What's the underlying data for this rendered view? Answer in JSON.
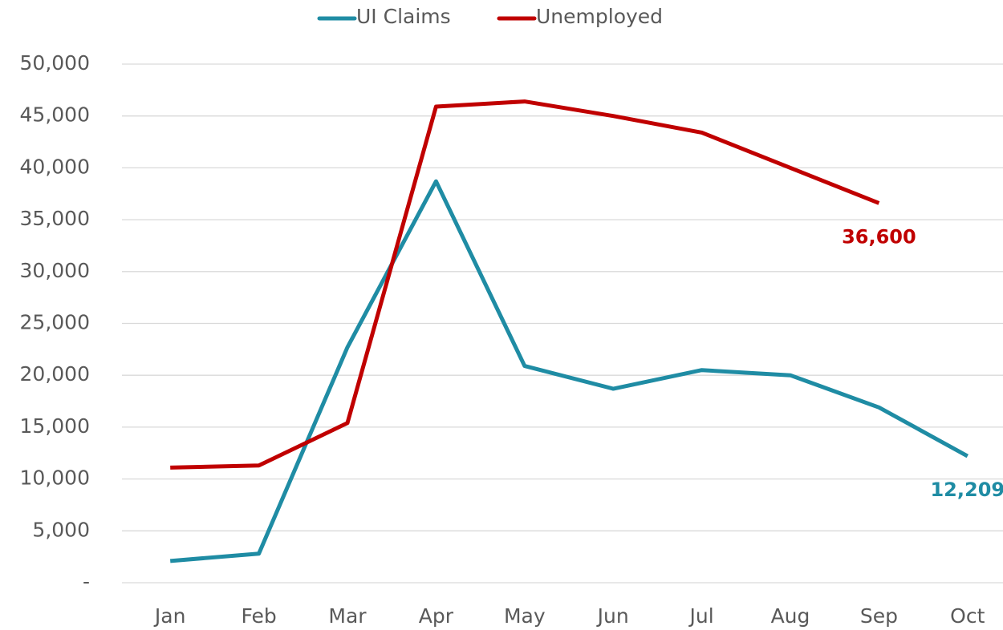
{
  "chart_data": {
    "type": "line",
    "categories": [
      "Jan",
      "Feb",
      "Mar",
      "Apr",
      "May",
      "Jun",
      "Jul",
      "Aug",
      "Sep",
      "Oct"
    ],
    "series": [
      {
        "name": "UI Claims",
        "color": "#1f8ca4",
        "values": [
          2100,
          2800,
          22700,
          38700,
          20900,
          18700,
          20500,
          20000,
          16900,
          12209
        ],
        "value_labels": [
          null,
          null,
          null,
          null,
          null,
          null,
          null,
          null,
          null,
          "12,209"
        ]
      },
      {
        "name": "Unemployed",
        "color": "#c00000",
        "values": [
          11100,
          11300,
          15400,
          45900,
          46400,
          45000,
          43400,
          40000,
          36600,
          null
        ],
        "value_labels": [
          null,
          null,
          null,
          null,
          null,
          null,
          null,
          null,
          "36,600",
          null
        ]
      }
    ],
    "ylim": [
      0,
      50000
    ],
    "yticks": [
      {
        "value": 0,
        "label": "-"
      },
      {
        "value": 5000,
        "label": "5,000"
      },
      {
        "value": 10000,
        "label": "10,000"
      },
      {
        "value": 15000,
        "label": "15,000"
      },
      {
        "value": 20000,
        "label": "20,000"
      },
      {
        "value": 25000,
        "label": "25,000"
      },
      {
        "value": 30000,
        "label": "30,000"
      },
      {
        "value": 35000,
        "label": "35,000"
      },
      {
        "value": 40000,
        "label": "40,000"
      },
      {
        "value": 45000,
        "label": "45,000"
      },
      {
        "value": 50000,
        "label": "50,000"
      }
    ],
    "grid": true,
    "legend": "top"
  }
}
